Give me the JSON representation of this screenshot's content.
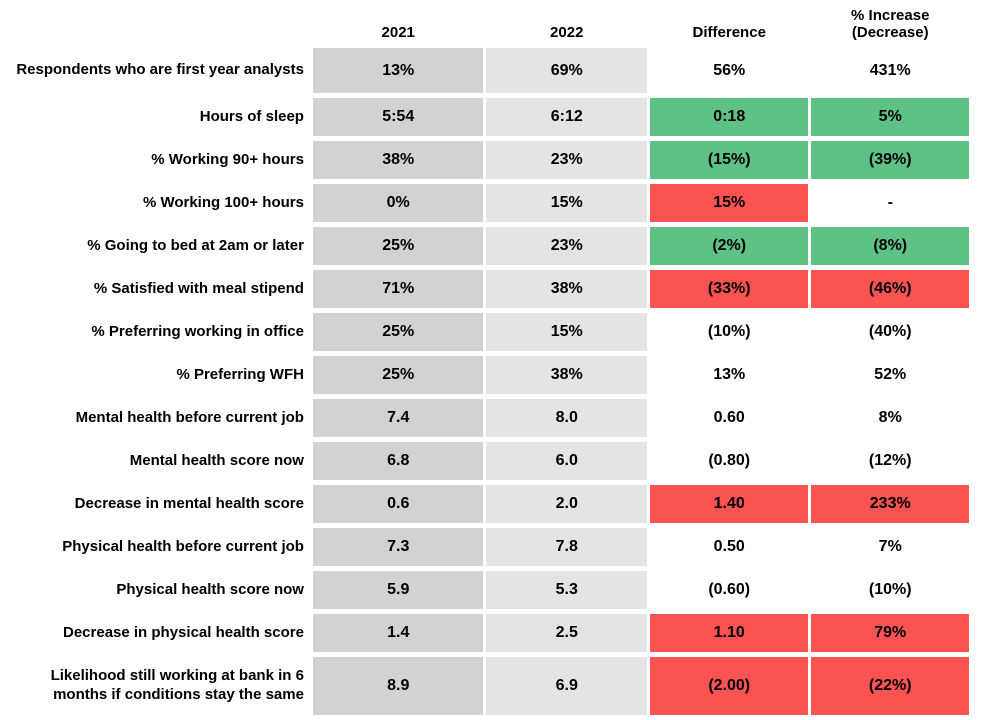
{
  "colors": {
    "gray_2021": "#D2D2D2",
    "gray_2022": "#E4E4E4",
    "green": "#5EC287",
    "red": "#FB5252"
  },
  "chart_data": {
    "type": "table",
    "title": "",
    "columns": [
      "",
      "2021",
      "2022",
      "Difference",
      "% Increase (Decrease)"
    ],
    "highlight_colors": {
      "green": "#5EC287",
      "red": "#FB5252",
      "none": "#FFFFFF"
    },
    "rows": [
      {
        "label": "Respondents who are first year analysts",
        "y2021": "13%",
        "y2022": "69%",
        "difference": "56%",
        "pct_change": "431%",
        "difference_highlight": "none",
        "pct_change_highlight": "none"
      },
      {
        "label": "Hours of sleep",
        "y2021": "5:54",
        "y2022": "6:12",
        "difference": "0:18",
        "pct_change": "5%",
        "difference_highlight": "green",
        "pct_change_highlight": "green"
      },
      {
        "label": "% Working 90+ hours",
        "y2021": "38%",
        "y2022": "23%",
        "difference": "(15%)",
        "pct_change": "(39%)",
        "difference_highlight": "green",
        "pct_change_highlight": "green"
      },
      {
        "label": "% Working 100+ hours",
        "y2021": "0%",
        "y2022": "15%",
        "difference": "15%",
        "pct_change": "-",
        "difference_highlight": "red",
        "pct_change_highlight": "none"
      },
      {
        "label": "% Going to bed at 2am or later",
        "y2021": "25%",
        "y2022": "23%",
        "difference": "(2%)",
        "pct_change": "(8%)",
        "difference_highlight": "green",
        "pct_change_highlight": "green"
      },
      {
        "label": "% Satisfied with meal stipend",
        "y2021": "71%",
        "y2022": "38%",
        "difference": "(33%)",
        "pct_change": "(46%)",
        "difference_highlight": "red",
        "pct_change_highlight": "red"
      },
      {
        "label": "% Preferring working in office",
        "y2021": "25%",
        "y2022": "15%",
        "difference": "(10%)",
        "pct_change": "(40%)",
        "difference_highlight": "none",
        "pct_change_highlight": "none"
      },
      {
        "label": "% Preferring WFH",
        "y2021": "25%",
        "y2022": "38%",
        "difference": "13%",
        "pct_change": "52%",
        "difference_highlight": "none",
        "pct_change_highlight": "none"
      },
      {
        "label": "Mental health before current job",
        "y2021": "7.4",
        "y2022": "8.0",
        "difference": "0.60",
        "pct_change": "8%",
        "difference_highlight": "none",
        "pct_change_highlight": "none"
      },
      {
        "label": "Mental health score now",
        "y2021": "6.8",
        "y2022": "6.0",
        "difference": "(0.80)",
        "pct_change": "(12%)",
        "difference_highlight": "none",
        "pct_change_highlight": "none"
      },
      {
        "label": "Decrease in mental health score",
        "y2021": "0.6",
        "y2022": "2.0",
        "difference": "1.40",
        "pct_change": "233%",
        "difference_highlight": "red",
        "pct_change_highlight": "red"
      },
      {
        "label": "Physical health before current job",
        "y2021": "7.3",
        "y2022": "7.8",
        "difference": "0.50",
        "pct_change": "7%",
        "difference_highlight": "none",
        "pct_change_highlight": "none"
      },
      {
        "label": "Physical health score now",
        "y2021": "5.9",
        "y2022": "5.3",
        "difference": "(0.60)",
        "pct_change": "(10%)",
        "difference_highlight": "none",
        "pct_change_highlight": "none"
      },
      {
        "label": "Decrease in physical health score",
        "y2021": "1.4",
        "y2022": "2.5",
        "difference": "1.10",
        "pct_change": "79%",
        "difference_highlight": "red",
        "pct_change_highlight": "red"
      },
      {
        "label": "Likelihood still working at bank in 6\nmonths if conditions stay the same",
        "y2021": "8.9",
        "y2022": "6.9",
        "difference": "(2.00)",
        "pct_change": "(22%)",
        "difference_highlight": "red",
        "pct_change_highlight": "red"
      }
    ]
  }
}
